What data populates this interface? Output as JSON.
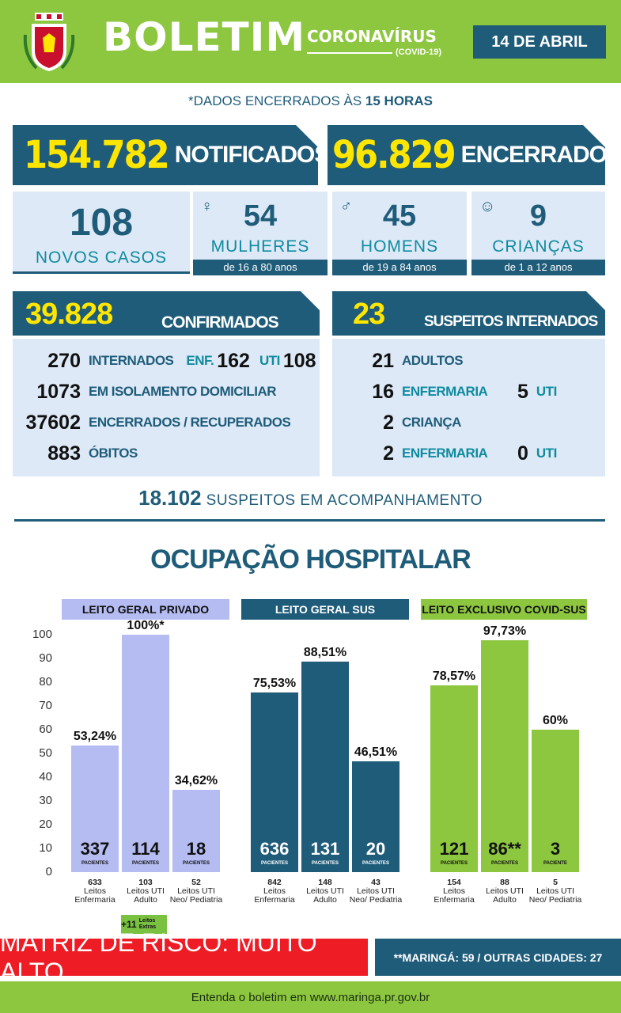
{
  "header": {
    "title": "BOLETIM",
    "corona": "CORONAVÍRUS",
    "corona_sub": "(COVID-19)",
    "date": "14 DE ABRIL"
  },
  "cutoff": {
    "prefix": "*DADOS ENCERRADOS ÀS ",
    "hour": "15 HORAS"
  },
  "totals": {
    "notified_value": "154.782",
    "notified_label": "NOTIFICADOS",
    "closed_value": "96.829",
    "closed_label": "ENCERRADOS"
  },
  "new_cases": {
    "total": "108",
    "total_label": "NOVOS CASOS",
    "women": "54",
    "women_label": "MULHERES",
    "women_range": "de 16 a 80 anos",
    "men": "45",
    "men_label": "HOMENS",
    "men_range": "de 19 a 84 anos",
    "children": "9",
    "children_label": "CRIANÇAS",
    "children_range": "de 1 a 12 anos"
  },
  "confirmed": {
    "value": "39.828",
    "label": "CONFIRMADOS",
    "hospitalized": "270",
    "hospitalized_label": "INTERNADOS",
    "ward_label": "ENF.",
    "ward": "162",
    "icu_label": "UTI",
    "icu": "108",
    "home_isolation": "1073",
    "home_isolation_label": "EM ISOLAMENTO DOMICILIAR",
    "recovered": "37602",
    "recovered_label": "ENCERRADOS / RECUPERADOS",
    "deaths": "883",
    "deaths_label": "ÓBITOS"
  },
  "suspected_hospitalized": {
    "value": "23",
    "label": "SUSPEITOS INTERNADOS",
    "adults": "21",
    "adults_label": "ADULTOS",
    "adult_ward": "16",
    "adult_ward_label": "ENFERMARIA",
    "adult_icu": "5",
    "adult_icu_label": "UTI",
    "children": "2",
    "children_label": "CRIANÇA",
    "child_ward": "2",
    "child_ward_label": "ENFERMARIA",
    "child_icu": "0",
    "child_icu_label": "UTI"
  },
  "monitoring": {
    "value": "18.102",
    "label": "SUSPEITOS EM ACOMPANHAMENTO"
  },
  "occupancy_title": "OCUPAÇÃO HOSPITALAR",
  "colors": {
    "private": "#b5bcf2",
    "sus": "#1f5c7a",
    "covid_sus": "#8dc63f",
    "header_green": "#8dc63f",
    "navy": "#1f5c7a",
    "alert_red": "#ee1c25"
  },
  "chart_data": {
    "type": "bar",
    "ylim": [
      0,
      100
    ],
    "yticks": [
      "0",
      "10",
      "20",
      "30",
      "40",
      "50",
      "60",
      "70",
      "80",
      "90",
      "100"
    ],
    "groups": [
      {
        "name": "LEITO GERAL PRIVADO",
        "color": "#b5bcf2",
        "bars": [
          {
            "value": 53.24,
            "pct_label": "53,24%",
            "patients": "337",
            "unit": "PACIENTES",
            "beds": "633",
            "caption": "Leitos Enfermaria"
          },
          {
            "value": 100,
            "pct_label": "100%*",
            "patients": "114",
            "unit": "PACIENTES",
            "beds": "103",
            "caption": "Leitos UTI Adulto"
          },
          {
            "value": 34.62,
            "pct_label": "34,62%",
            "patients": "18",
            "unit": "PACIENTES",
            "beds": "52",
            "caption": "Leitos UTI Neo/ Pediatria"
          }
        ]
      },
      {
        "name": "LEITO GERAL SUS",
        "color": "#1f5c7a",
        "bars": [
          {
            "value": 75.53,
            "pct_label": "75,53%",
            "patients": "636",
            "unit": "PACIENTES",
            "beds": "842",
            "caption": "Leitos Enfermaria"
          },
          {
            "value": 88.51,
            "pct_label": "88,51%",
            "patients": "131",
            "unit": "PACIENTES",
            "beds": "148",
            "caption": "Leitos UTI Adulto"
          },
          {
            "value": 46.51,
            "pct_label": "46,51%",
            "patients": "20",
            "unit": "PACIENTES",
            "beds": "43",
            "caption": "Leitos UTI Neo/ Pediatria"
          }
        ]
      },
      {
        "name": "LEITO EXCLUSIVO COVID-SUS",
        "color": "#8dc63f",
        "bars": [
          {
            "value": 78.57,
            "pct_label": "78,57%",
            "patients": "121",
            "unit": "PACIENTES",
            "beds": "154",
            "caption": "Leitos Enfermaria"
          },
          {
            "value": 97.73,
            "pct_label": "97,73%",
            "patients": "86**",
            "unit": "PACIENTES",
            "beds": "88",
            "caption": "Leitos UTI Adulto"
          },
          {
            "value": 60,
            "pct_label": "60%",
            "patients": "3",
            "unit": "PACIENTE",
            "beds": "5",
            "caption": "Leitos UTI Neo/ Pediatria"
          }
        ]
      }
    ]
  },
  "extra_beds": {
    "value": "+11",
    "label": "Leitos Extras"
  },
  "risk": "MATRIZ DE RISCO: MUITO ALTO",
  "maringa_note": "**MARINGÁ: 59 / OUTRAS CIDADES: 27",
  "footer": "Entenda o boletim em www.maringa.pr.gov.br"
}
